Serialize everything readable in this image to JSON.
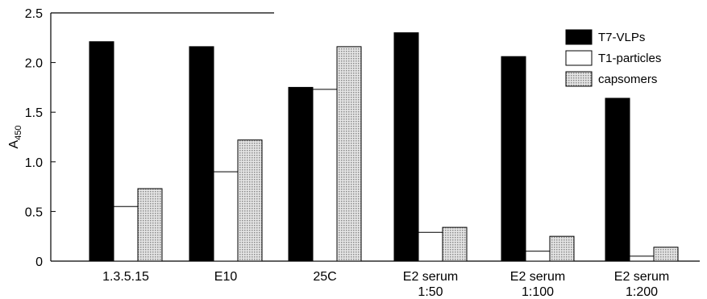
{
  "chart_data": {
    "type": "bar",
    "title": "",
    "ylabel": "A",
    "ylabel_sub": "450",
    "xlabel": "",
    "ylim": [
      0,
      2.5
    ],
    "yticks": [
      "0",
      "0.5",
      "1.0",
      "1.5",
      "2.0",
      "2.5"
    ],
    "categories": [
      [
        "1.3.5.15"
      ],
      [
        "E10"
      ],
      [
        "25C"
      ],
      [
        "E2 serum",
        "1:50"
      ],
      [
        "E2 serum",
        "1:100"
      ],
      [
        "E2 serum",
        "1:200"
      ]
    ],
    "series": [
      {
        "name": "T7-VLPs",
        "fill": "#000000",
        "values": [
          2.21,
          2.16,
          1.75,
          2.3,
          2.06,
          1.64
        ]
      },
      {
        "name": "T1-particles",
        "fill": "#ffffff",
        "values": [
          0.55,
          0.9,
          1.73,
          0.29,
          0.1,
          0.05
        ]
      },
      {
        "name": "capsomers",
        "fill": "pattern",
        "values": [
          0.73,
          1.22,
          2.16,
          0.34,
          0.25,
          0.14
        ]
      }
    ],
    "legend_position": "top-right",
    "grid": false
  }
}
